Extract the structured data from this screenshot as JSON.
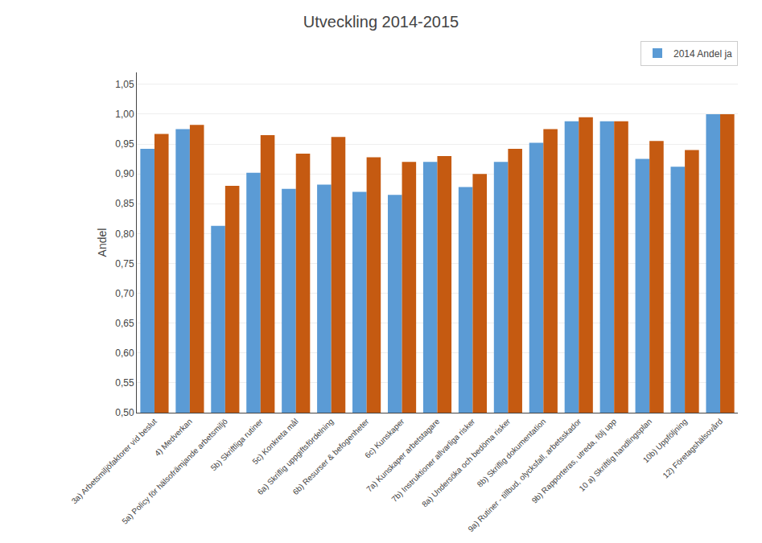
{
  "chart_data": {
    "type": "bar",
    "title": "Utveckling 2014-2015",
    "ylabel": "Andel",
    "categories": [
      "3a) Arbetsmiljöfaktorer vid beslut",
      "4) Medverkan",
      "5a) Policy för hälsofrämjande arbetsmiljö",
      "5b) Skriftliga rutiner",
      "5c) Konkreta mål",
      "6a) Skriflig uppgiftsfördelning",
      "6b) Resurser & befogenheter",
      "6c) Kunskaper",
      "7a) Kunskaper arbetstagare",
      "7b) Instruktioner allvarliga risker",
      "8a) Undersöka och bedöma risker",
      "8b) Skriflig dokumentation",
      "9a) Rutiner - tillbud, olycksfall, arbetsskador",
      "9b) Rapporteras, utreda, följ upp",
      "10 a) Skriftlig handlingsplan",
      "10b) Uppföljning",
      "12) Företagshälsovård"
    ],
    "series": [
      {
        "name": "2014 Andel ja",
        "color": "#5B9BD5",
        "values": [
          0.942,
          0.975,
          0.813,
          0.902,
          0.875,
          0.882,
          0.87,
          0.865,
          0.92,
          0.878,
          0.92,
          0.952,
          0.988,
          0.988,
          0.925,
          0.912,
          1.0
        ]
      },
      {
        "color": "#C55A11",
        "values": [
          0.967,
          0.982,
          0.88,
          0.965,
          0.934,
          0.962,
          0.928,
          0.92,
          0.93,
          0.9,
          0.942,
          0.975,
          0.995,
          0.988,
          0.955,
          0.94,
          1.0
        ]
      }
    ],
    "ylim": [
      0.5,
      1.07
    ],
    "yticks": [
      {
        "value": 0.5,
        "label": "0,50"
      },
      {
        "value": 0.55,
        "label": "0,55"
      },
      {
        "value": 0.6,
        "label": "0,60"
      },
      {
        "value": 0.65,
        "label": "0,65"
      },
      {
        "value": 0.7,
        "label": "0,70"
      },
      {
        "value": 0.75,
        "label": "0,75"
      },
      {
        "value": 0.8,
        "label": "0,80"
      },
      {
        "value": 0.85,
        "label": "0,85"
      },
      {
        "value": 0.9,
        "label": "0,90"
      },
      {
        "value": 0.95,
        "label": "0,95"
      },
      {
        "value": 1.0,
        "label": "1,00"
      },
      {
        "value": 1.05,
        "label": "1,05"
      }
    ],
    "grid": true,
    "legend": "upper right"
  }
}
